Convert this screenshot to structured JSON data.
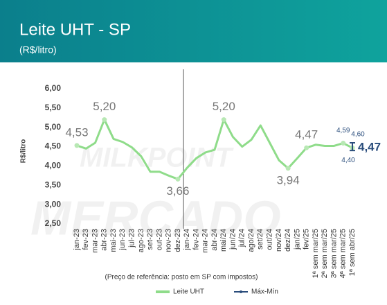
{
  "chart_data": {
    "type": "line",
    "title": "Leite UHT - SP",
    "subtitle": "(R$/litro)",
    "y_label": "R$/litro",
    "note": "(Preço de referência: posto em SP com impostos)",
    "watermark": [
      "MILKPOINT",
      "MERCADO"
    ],
    "categories": [
      "jan-23",
      "fev-23",
      "mar-23",
      "abr-23",
      "mai-23",
      "jun-23",
      "jul-23",
      "ago-23",
      "set-23",
      "out-23",
      "nov-23",
      "dez-23",
      "jan-24",
      "fev-24",
      "mar-24",
      "abr-24",
      "mai/24",
      "jun/24",
      "jul/24",
      "ago/24",
      "set/24",
      "out/24",
      "nov/24",
      "dez/24",
      "jan/25",
      "fev/25",
      "1ª sem mar/25",
      "2ª sem mar/25",
      "3ª sem mar/25",
      "4ª sem mar/25",
      "1ª sem abr/25"
    ],
    "series": [
      {
        "name": "Leite UHT",
        "color": "#8fdc8a",
        "values": [
          4.53,
          4.45,
          4.6,
          5.2,
          4.7,
          4.62,
          4.48,
          4.25,
          3.85,
          3.85,
          3.75,
          3.66,
          3.95,
          4.2,
          4.35,
          4.42,
          5.2,
          4.75,
          4.5,
          4.68,
          5.05,
          4.6,
          4.15,
          3.94,
          4.2,
          4.47,
          4.55,
          4.52,
          4.52,
          4.59,
          4.47
        ],
        "value_labels": [
          "4,53",
          null,
          null,
          "5,20",
          null,
          null,
          null,
          null,
          null,
          null,
          null,
          "3,66",
          null,
          null,
          null,
          null,
          "5,20",
          null,
          null,
          null,
          null,
          null,
          null,
          "3,94",
          null,
          "4,47",
          null,
          null,
          null,
          "4,59",
          "4,47"
        ]
      }
    ],
    "error_bar": {
      "name": "Máx-Mín",
      "color": "#2a4d7c",
      "category": "1ª sem abr/25",
      "max": 4.6,
      "min": 4.4,
      "labels": [
        "4,60",
        "4,40"
      ]
    },
    "ylim": [
      2.5,
      6.0
    ],
    "yticks": [
      {
        "value": 2.5,
        "label": "2,50"
      },
      {
        "value": 3,
        "label": "3,00"
      },
      {
        "value": 3.5,
        "label": "3,50"
      },
      {
        "value": 4,
        "label": "4,00"
      },
      {
        "value": 4.5,
        "label": "4,50"
      },
      {
        "value": 5,
        "label": "5,00"
      },
      {
        "value": 5.5,
        "label": "5,50"
      },
      {
        "value": 6,
        "label": "6,00"
      }
    ]
  }
}
